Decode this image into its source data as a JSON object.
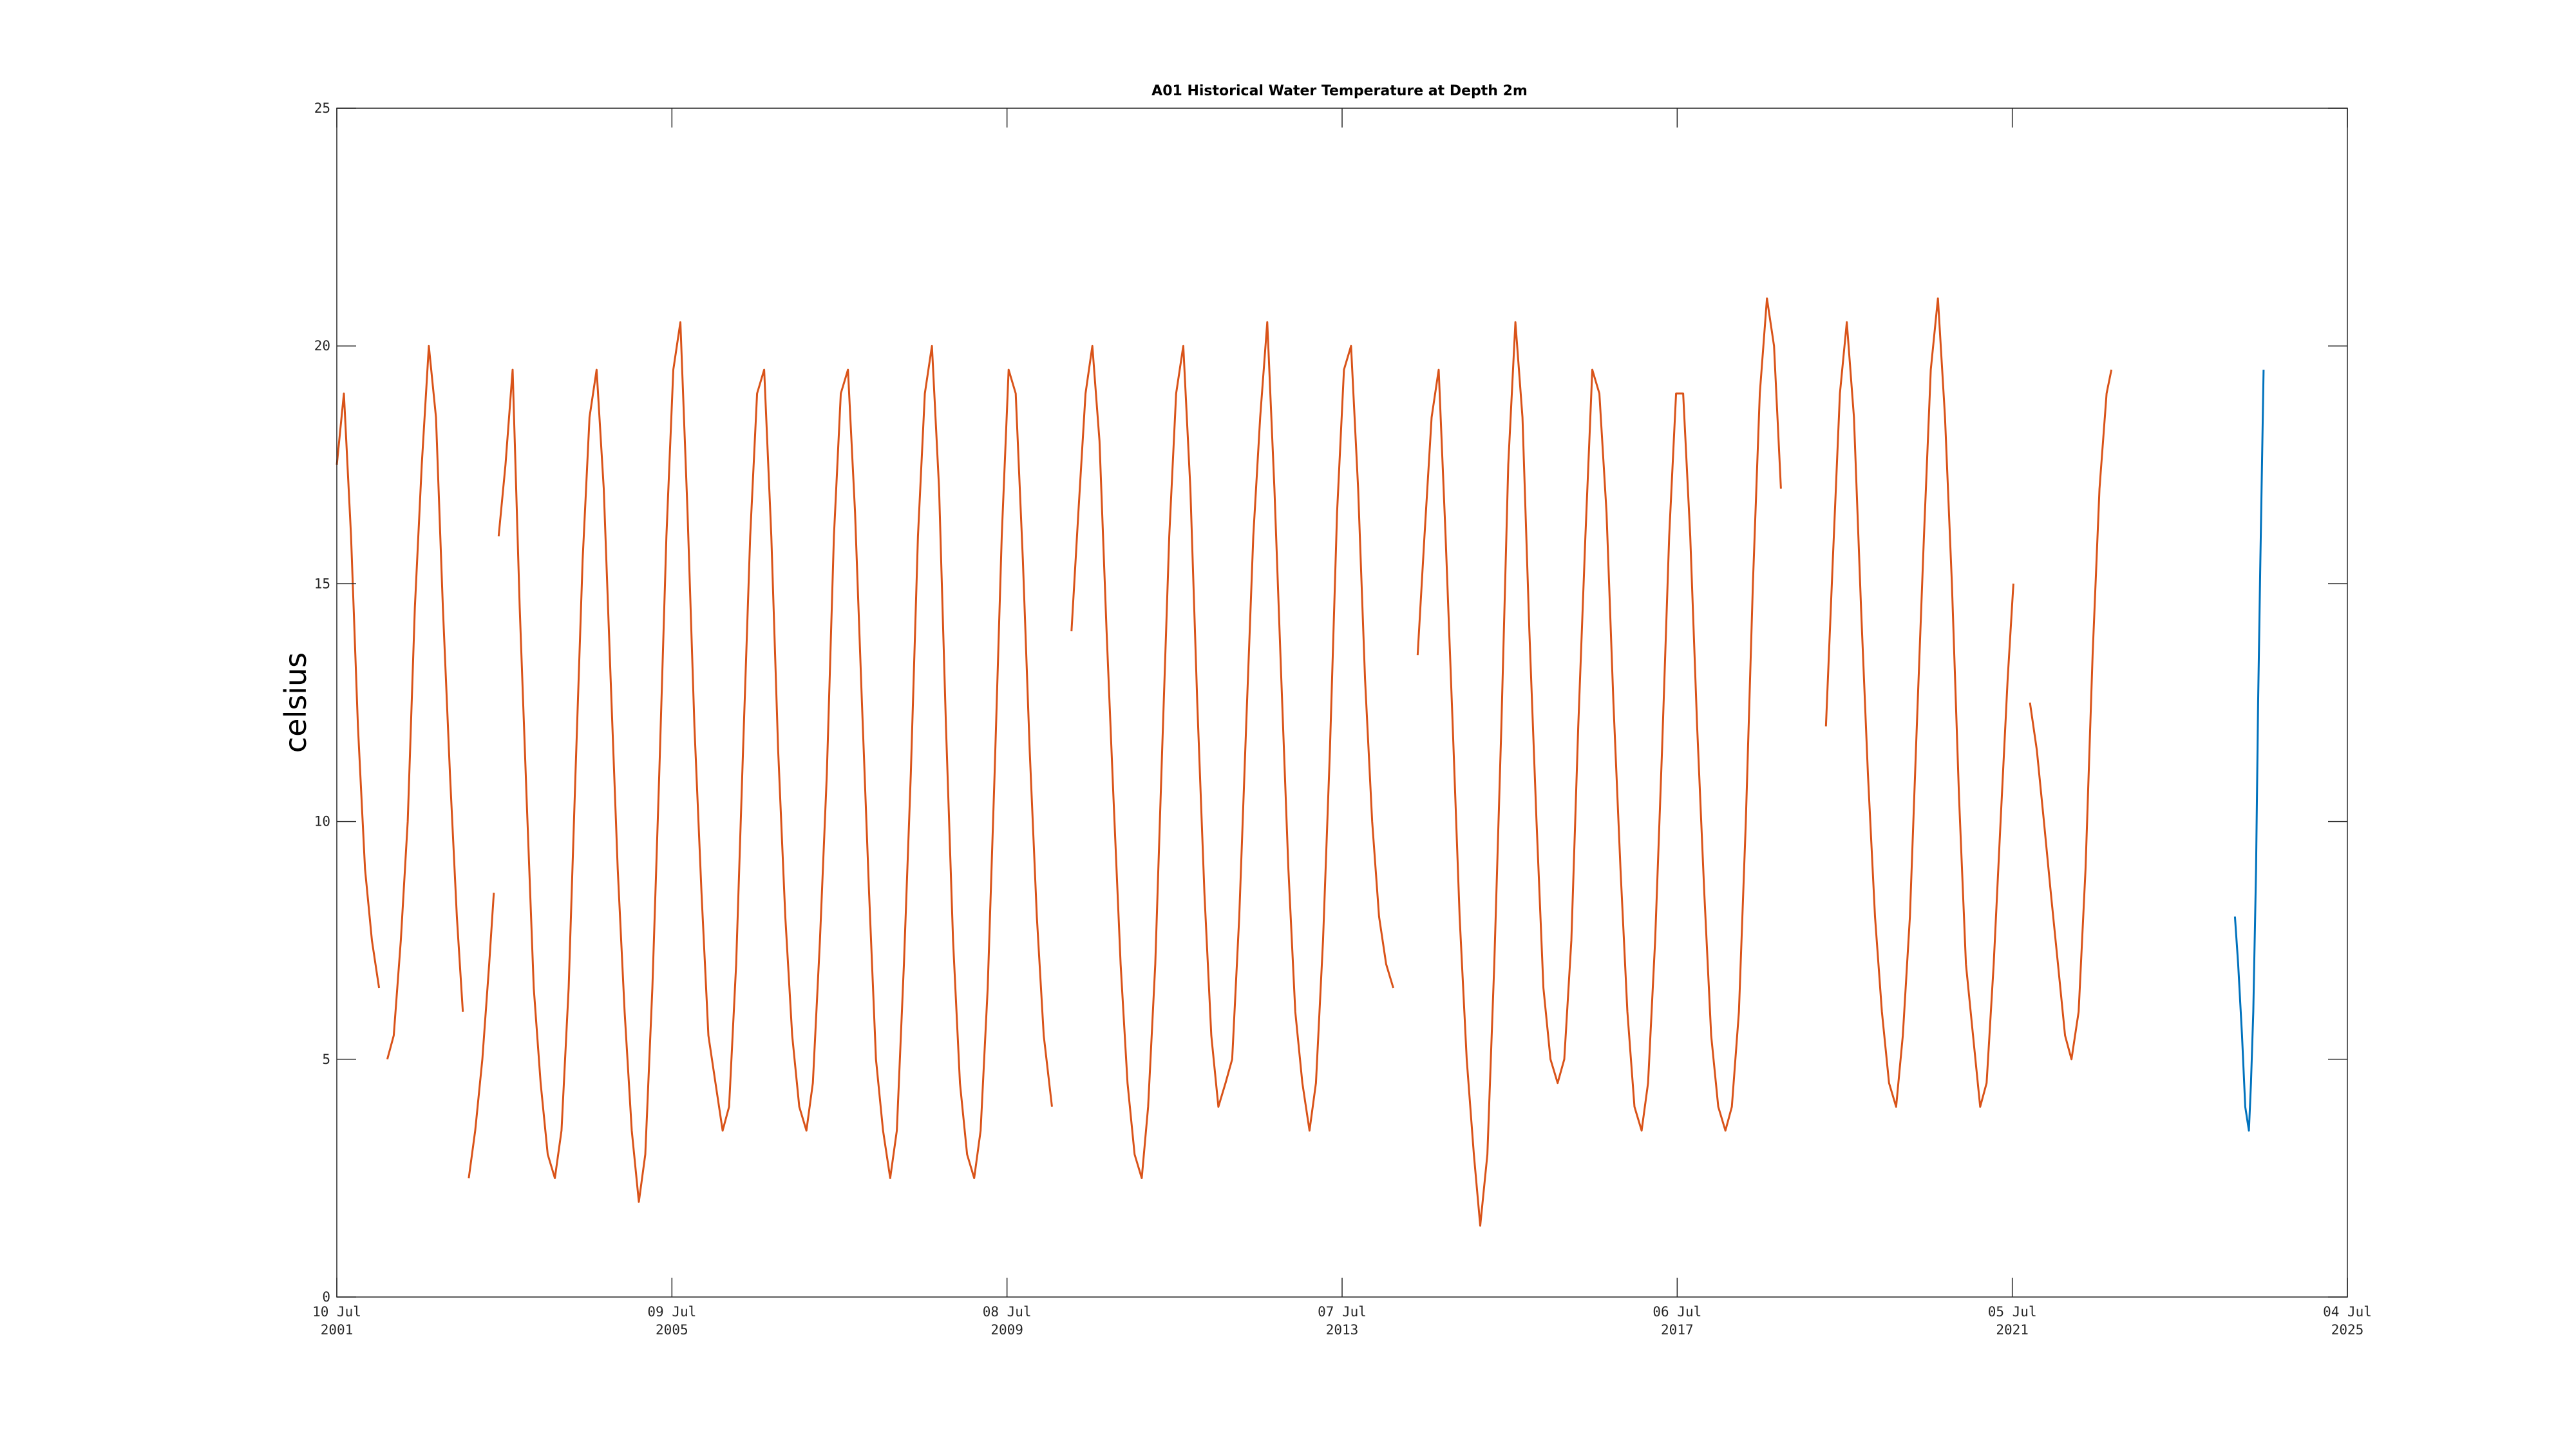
{
  "chart_data": {
    "type": "line",
    "title": "A01 Historical Water Temperature at Depth 2m",
    "xlabel": "",
    "ylabel": "celsius",
    "xlim": [
      "2001-07-10",
      "2025-07-04"
    ],
    "ylim": [
      0,
      25
    ],
    "yticks": [
      0,
      5,
      10,
      15,
      20,
      25
    ],
    "xticks": [
      {
        "date": "2001-07-10",
        "line1": "10 Jul",
        "line2": "2001"
      },
      {
        "date": "2005-07-09",
        "line1": "09 Jul",
        "line2": "2005"
      },
      {
        "date": "2009-07-08",
        "line1": "08 Jul",
        "line2": "2009"
      },
      {
        "date": "2013-07-07",
        "line1": "07 Jul",
        "line2": "2013"
      },
      {
        "date": "2017-07-06",
        "line1": "06 Jul",
        "line2": "2017"
      },
      {
        "date": "2021-07-05",
        "line1": "05 Jul",
        "line2": "2021"
      },
      {
        "date": "2025-07-04",
        "line1": "04 Jul",
        "line2": "2025"
      }
    ],
    "grid": false,
    "series": [
      {
        "color": "#d95319",
        "segments": [
          {
            "x": [
              "2001-07-10",
              "2001-08-10",
              "2001-09-10",
              "2001-10-10",
              "2001-11-10",
              "2001-12-10",
              "2002-01-10"
            ],
            "y": [
              17.5,
              19.0,
              16.0,
              12.0,
              9.0,
              7.5,
              6.5
            ]
          },
          {
            "x": [
              "2002-02-15",
              "2002-03-15",
              "2002-04-15",
              "2002-05-15",
              "2002-06-15",
              "2002-07-15",
              "2002-08-15",
              "2002-09-15",
              "2002-10-15",
              "2002-11-15",
              "2002-12-15",
              "2003-01-10"
            ],
            "y": [
              5.0,
              5.5,
              7.5,
              10.0,
              14.5,
              17.5,
              20.0,
              18.5,
              14.5,
              11.0,
              8.0,
              6.0
            ]
          },
          {
            "x": [
              "2003-02-05",
              "2003-03-05",
              "2003-04-05",
              "2003-05-05",
              "2003-05-25"
            ],
            "y": [
              2.5,
              3.5,
              5.0,
              7.0,
              8.5
            ]
          },
          {
            "x": [
              "2003-06-15",
              "2003-07-15",
              "2003-08-15",
              "2003-09-15",
              "2003-10-15",
              "2003-11-15",
              "2003-12-15",
              "2004-01-15",
              "2004-02-15",
              "2004-03-15",
              "2004-04-15",
              "2004-05-15",
              "2004-06-15",
              "2004-07-15",
              "2004-08-15",
              "2004-09-15",
              "2004-10-15",
              "2004-11-15",
              "2004-12-15",
              "2005-01-15",
              "2005-02-15",
              "2005-03-15",
              "2005-04-15",
              "2005-05-15",
              "2005-06-15",
              "2005-07-15",
              "2005-08-15",
              "2005-09-15",
              "2005-10-15",
              "2005-11-15",
              "2005-12-15",
              "2006-01-15",
              "2006-02-15",
              "2006-03-15",
              "2006-04-15",
              "2006-05-15",
              "2006-06-15",
              "2006-07-15",
              "2006-08-15",
              "2006-09-15",
              "2006-10-15",
              "2006-11-15",
              "2006-12-15",
              "2007-01-15",
              "2007-02-15",
              "2007-03-15",
              "2007-04-15",
              "2007-05-15",
              "2007-06-15",
              "2007-07-15",
              "2007-08-15",
              "2007-09-15",
              "2007-10-15",
              "2007-11-15",
              "2007-12-15",
              "2008-01-15",
              "2008-02-15",
              "2008-03-15",
              "2008-04-15",
              "2008-05-15",
              "2008-06-15",
              "2008-07-15",
              "2008-08-15",
              "2008-09-15",
              "2008-10-15",
              "2008-11-15",
              "2008-12-15",
              "2009-01-15",
              "2009-02-15",
              "2009-03-15",
              "2009-04-15",
              "2009-05-15",
              "2009-06-15",
              "2009-07-15",
              "2009-08-15",
              "2009-09-15",
              "2009-10-15",
              "2009-11-15",
              "2009-12-15",
              "2010-01-20"
            ],
            "y": [
              16.0,
              17.5,
              19.5,
              14.5,
              10.5,
              6.5,
              4.5,
              3.0,
              2.5,
              3.5,
              6.5,
              11.0,
              15.5,
              18.5,
              19.5,
              17.0,
              13.0,
              9.0,
              6.0,
              3.5,
              2.0,
              3.0,
              6.5,
              11.0,
              16.0,
              19.5,
              20.5,
              16.5,
              12.0,
              8.5,
              5.5,
              4.5,
              3.5,
              4.0,
              7.0,
              11.5,
              16.0,
              19.0,
              19.5,
              16.0,
              11.5,
              8.0,
              5.5,
              4.0,
              3.5,
              4.5,
              7.5,
              11.0,
              16.0,
              19.0,
              19.5,
              16.5,
              12.5,
              8.5,
              5.0,
              3.5,
              2.5,
              3.5,
              7.0,
              11.0,
              16.0,
              19.0,
              20.0,
              17.0,
              12.0,
              7.5,
              4.5,
              3.0,
              2.5,
              3.5,
              6.5,
              11.0,
              16.0,
              19.5,
              19.0,
              15.5,
              11.5,
              8.0,
              5.5,
              4.0
            ]
          },
          {
            "x": [
              "2010-04-15",
              "2010-05-15",
              "2010-06-15",
              "2010-07-15",
              "2010-08-15",
              "2010-09-15",
              "2010-10-15",
              "2010-11-15",
              "2010-12-15",
              "2011-01-15",
              "2011-02-15",
              "2011-03-15",
              "2011-04-15",
              "2011-05-15",
              "2011-06-15",
              "2011-07-15",
              "2011-08-15",
              "2011-09-15",
              "2011-10-15",
              "2011-11-15",
              "2011-12-15",
              "2012-01-15",
              "2012-02-15",
              "2012-03-15",
              "2012-04-15",
              "2012-05-15",
              "2012-06-15",
              "2012-07-15",
              "2012-08-15",
              "2012-09-15",
              "2012-10-15",
              "2012-11-15",
              "2012-12-15",
              "2013-01-15",
              "2013-02-15",
              "2013-03-15",
              "2013-04-15",
              "2013-05-15",
              "2013-06-15",
              "2013-07-15",
              "2013-08-15",
              "2013-09-15",
              "2013-10-15",
              "2013-11-15",
              "2013-12-15",
              "2014-01-15",
              "2014-02-15"
            ],
            "y": [
              14.0,
              16.5,
              19.0,
              20.0,
              18.0,
              14.0,
              10.5,
              7.0,
              4.5,
              3.0,
              2.5,
              4.0,
              7.0,
              11.5,
              16.0,
              19.0,
              20.0,
              17.0,
              12.5,
              8.5,
              5.5,
              4.0,
              4.5,
              5.0,
              8.0,
              12.0,
              16.0,
              18.5,
              20.5,
              17.0,
              13.0,
              9.0,
              6.0,
              4.5,
              3.5,
              4.5,
              7.5,
              11.5,
              16.5,
              19.5,
              20.0,
              17.0,
              13.0,
              10.0,
              8.0,
              7.0,
              6.5
            ]
          },
          {
            "x": [
              "2014-06-01",
              "2014-07-01",
              "2014-08-01",
              "2014-09-01",
              "2014-10-01",
              "2014-11-01",
              "2014-12-01",
              "2015-01-01",
              "2015-02-01",
              "2015-03-01",
              "2015-04-01",
              "2015-05-01",
              "2015-06-01",
              "2015-07-01",
              "2015-08-01",
              "2015-09-01",
              "2015-10-01",
              "2015-11-01",
              "2015-12-01",
              "2016-01-01",
              "2016-02-01",
              "2016-03-01",
              "2016-04-01",
              "2016-05-01",
              "2016-06-01",
              "2016-07-01",
              "2016-08-01",
              "2016-09-01",
              "2016-10-01",
              "2016-11-01",
              "2016-12-01",
              "2017-01-01",
              "2017-02-01",
              "2017-03-01",
              "2017-04-01",
              "2017-05-01",
              "2017-06-01",
              "2017-07-01",
              "2017-08-01",
              "2017-09-01",
              "2017-10-01",
              "2017-11-01",
              "2017-12-01",
              "2018-01-01",
              "2018-02-01",
              "2018-03-01",
              "2018-04-01",
              "2018-05-01",
              "2018-06-01",
              "2018-07-01",
              "2018-08-01",
              "2018-09-01",
              "2018-10-01"
            ],
            "y": [
              13.5,
              16.0,
              18.5,
              19.5,
              16.0,
              12.0,
              8.0,
              5.0,
              3.0,
              1.5,
              3.0,
              7.0,
              12.0,
              17.5,
              20.5,
              18.5,
              14.0,
              10.0,
              6.5,
              5.0,
              4.5,
              5.0,
              7.5,
              12.0,
              16.0,
              19.5,
              19.0,
              16.5,
              12.5,
              9.0,
              6.0,
              4.0,
              3.5,
              4.5,
              7.5,
              11.5,
              16.0,
              19.0,
              19.0,
              16.0,
              12.0,
              8.5,
              5.5,
              4.0,
              3.5,
              4.0,
              6.0,
              10.0,
              15.0,
              19.0,
              21.0,
              20.0,
              17.0
            ]
          },
          {
            "x": [
              "2019-04-15",
              "2019-05-15",
              "2019-06-15",
              "2019-07-15",
              "2019-08-15",
              "2019-09-15",
              "2019-10-15",
              "2019-11-15",
              "2019-12-15",
              "2020-01-15",
              "2020-02-15",
              "2020-03-15",
              "2020-04-15",
              "2020-05-15",
              "2020-06-15",
              "2020-07-15",
              "2020-08-15",
              "2020-09-15",
              "2020-10-15",
              "2020-11-15",
              "2020-12-15",
              "2021-01-15",
              "2021-02-15",
              "2021-03-15",
              "2021-04-15",
              "2021-05-15",
              "2021-06-15",
              "2021-07-10"
            ],
            "y": [
              12.0,
              15.5,
              19.0,
              20.5,
              18.5,
              14.5,
              11.0,
              8.0,
              6.0,
              4.5,
              4.0,
              5.5,
              8.0,
              12.0,
              16.0,
              19.5,
              21.0,
              18.5,
              15.0,
              10.5,
              7.0,
              5.5,
              4.0,
              4.5,
              7.0,
              10.0,
              13.0,
              15.0
            ]
          },
          {
            "x": [
              "2021-09-20",
              "2021-10-20",
              "2021-11-20",
              "2021-12-20",
              "2022-01-20",
              "2022-02-20",
              "2022-03-20",
              "2022-04-20",
              "2022-05-20",
              "2022-06-20",
              "2022-07-20",
              "2022-08-20",
              "2022-09-10"
            ],
            "y": [
              12.5,
              11.5,
              10.0,
              8.5,
              7.0,
              5.5,
              5.0,
              6.0,
              9.0,
              13.5,
              17.0,
              19.0,
              19.5
            ]
          }
        ]
      },
      {
        "color": "#0072bd",
        "segments": [
          {
            "x": [
              "2024-03-01",
              "2024-03-15",
              "2024-04-01",
              "2024-04-15",
              "2024-05-01",
              "2024-05-10",
              "2024-05-20",
              "2024-06-01",
              "2024-06-10",
              "2024-06-20",
              "2024-07-04"
            ],
            "y": [
              8.0,
              7.0,
              5.5,
              4.0,
              3.5,
              4.5,
              6.0,
              9.0,
              12.5,
              15.5,
              19.5
            ]
          }
        ]
      }
    ]
  }
}
